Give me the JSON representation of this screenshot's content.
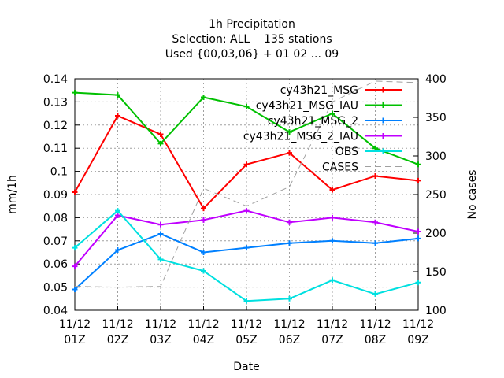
{
  "chart_data": {
    "type": "line",
    "title": [
      "1h Precipitation",
      "Selection: ALL    135 stations",
      "Used {00,03,06} + 01 02 ... 09"
    ],
    "xlabel": "Date",
    "ylabel": "mm/1h",
    "y2label": "No cases",
    "categories": [
      [
        "11/12",
        "01Z"
      ],
      [
        "11/12",
        "02Z"
      ],
      [
        "11/12",
        "03Z"
      ],
      [
        "11/12",
        "04Z"
      ],
      [
        "11/12",
        "05Z"
      ],
      [
        "11/12",
        "06Z"
      ],
      [
        "11/12",
        "07Z"
      ],
      [
        "11/12",
        "08Z"
      ],
      [
        "11/12",
        "09Z"
      ]
    ],
    "ylim": [
      0.04,
      0.14
    ],
    "y2lim": [
      100,
      400
    ],
    "yticks": [
      "0.04",
      "0.05",
      "0.06",
      "0.07",
      "0.08",
      "0.09",
      "0.1",
      "0.11",
      "0.12",
      "0.13",
      "0.14"
    ],
    "y2ticks": [
      "100",
      "150",
      "200",
      "250",
      "300",
      "350",
      "400"
    ],
    "grid": true,
    "legend_position": "top-right",
    "series": [
      {
        "name": "cy43h21_MSG",
        "color": "#ff0000",
        "axis": "y",
        "values": [
          0.091,
          0.124,
          0.116,
          0.084,
          0.103,
          0.108,
          0.092,
          0.098,
          0.096
        ]
      },
      {
        "name": "cy43h21_MSG_IAU",
        "color": "#00c000",
        "axis": "y",
        "values": [
          0.134,
          0.133,
          0.112,
          0.132,
          0.128,
          0.117,
          0.125,
          0.11,
          0.103
        ]
      },
      {
        "name": "cy43h21_MSG_2",
        "color": "#0080ff",
        "axis": "y",
        "values": [
          0.049,
          0.066,
          0.073,
          0.065,
          0.067,
          0.069,
          0.07,
          0.069,
          0.071
        ]
      },
      {
        "name": "cy43h21_MSG_2_IAU",
        "color": "#c000ff",
        "axis": "y",
        "values": [
          0.059,
          0.081,
          0.077,
          0.079,
          0.083,
          0.078,
          0.08,
          0.078,
          0.074
        ]
      },
      {
        "name": "OBS",
        "color": "#00e0e0",
        "axis": "y",
        "values": [
          0.067,
          0.083,
          0.062,
          0.057,
          0.044,
          0.045,
          0.053,
          0.047,
          0.052
        ]
      },
      {
        "name": "CASES",
        "color": "#a0a0a0",
        "axis": "y2",
        "dashed": true,
        "values": [
          131,
          130,
          131,
          258,
          235,
          260,
          370,
          397,
          395
        ]
      }
    ]
  }
}
